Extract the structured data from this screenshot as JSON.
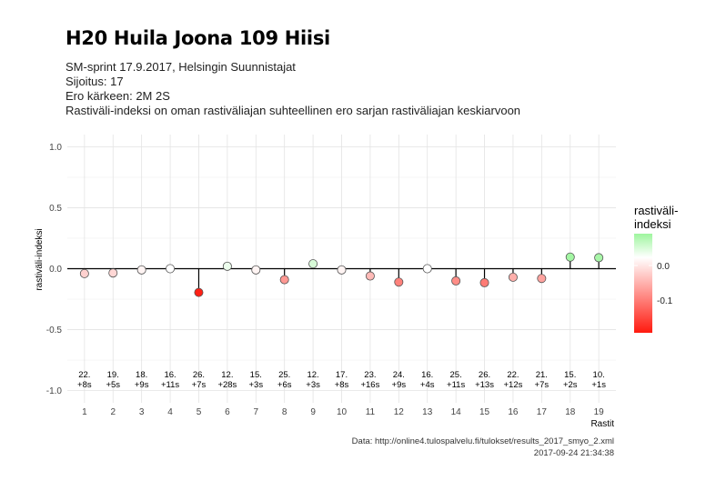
{
  "header": {
    "title": "H20 Huila Joona 109 Hiisi",
    "subtitle_lines": [
      "SM-sprint 17.9.2017, Helsingin Suunnistajat",
      "Sijoitus: 17",
      "Ero kärkeen: 2M 2S",
      "Rastiväli-indeksi on oman rastiväliajan suhteellinen ero sarjan rastiväliajan keskiarvoon"
    ]
  },
  "caption": {
    "source": "Data: http://online4.tulospalvelu.fi/tulokset/results_2017_smyo_2.xml",
    "timestamp": "2017-09-24 21:34:38"
  },
  "legend": {
    "title_line1": "rastiväli-",
    "title_line2": "indeksi",
    "ticks": [
      "0.0",
      "-0.1"
    ],
    "colors": {
      "high": "#9ef59e",
      "mid": "#ffffff",
      "low": "#ff1a0f"
    }
  },
  "chart_data": {
    "type": "lollipop",
    "xlabel": "Rastit",
    "ylabel": "rastiväli-indeksi",
    "ylim": [
      -1.0,
      1.0
    ],
    "yticks": [
      "1.0",
      "0.5",
      "0.0",
      "-0.5",
      "-1.0"
    ],
    "grid": true,
    "legend_position": "right",
    "points": [
      {
        "x": 1,
        "value": -0.04,
        "rank": "22.",
        "diff": "+8s"
      },
      {
        "x": 2,
        "value": -0.035,
        "rank": "19.",
        "diff": "+5s"
      },
      {
        "x": 3,
        "value": -0.01,
        "rank": "18.",
        "diff": "+9s"
      },
      {
        "x": 4,
        "value": 0.0,
        "rank": "16.",
        "diff": "+11s"
      },
      {
        "x": 5,
        "value": -0.195,
        "rank": "26.",
        "diff": "+7s"
      },
      {
        "x": 6,
        "value": 0.02,
        "rank": "12.",
        "diff": "+28s"
      },
      {
        "x": 7,
        "value": -0.01,
        "rank": "15.",
        "diff": "+3s"
      },
      {
        "x": 8,
        "value": -0.09,
        "rank": "25.",
        "diff": "+6s"
      },
      {
        "x": 9,
        "value": 0.04,
        "rank": "12.",
        "diff": "+3s"
      },
      {
        "x": 10,
        "value": -0.01,
        "rank": "17.",
        "diff": "+8s"
      },
      {
        "x": 11,
        "value": -0.06,
        "rank": "23.",
        "diff": "+16s"
      },
      {
        "x": 12,
        "value": -0.11,
        "rank": "24.",
        "diff": "+9s"
      },
      {
        "x": 13,
        "value": 0.0,
        "rank": "16.",
        "diff": "+4s"
      },
      {
        "x": 14,
        "value": -0.1,
        "rank": "25.",
        "diff": "+11s"
      },
      {
        "x": 15,
        "value": -0.115,
        "rank": "26.",
        "diff": "+13s"
      },
      {
        "x": 16,
        "value": -0.07,
        "rank": "22.",
        "diff": "+12s"
      },
      {
        "x": 17,
        "value": -0.08,
        "rank": "21.",
        "diff": "+7s"
      },
      {
        "x": 18,
        "value": 0.095,
        "rank": "15.",
        "diff": "+2s"
      },
      {
        "x": 19,
        "value": 0.09,
        "rank": "10.",
        "diff": "+1s"
      }
    ]
  }
}
